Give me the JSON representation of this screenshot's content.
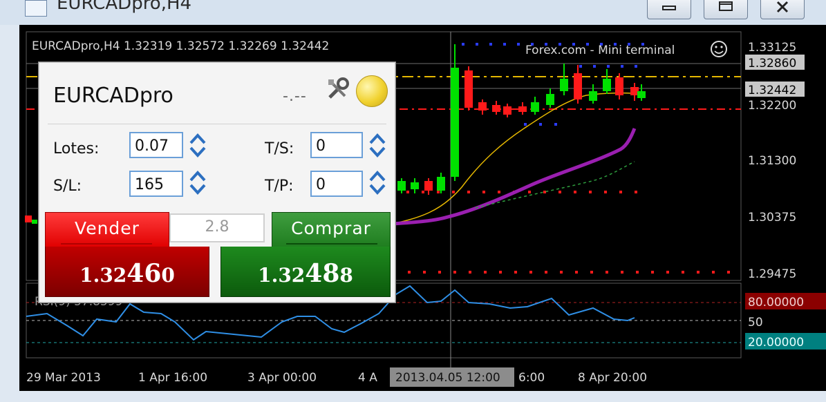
{
  "window": {
    "title": "EURCADpro,H4",
    "minimize_icon": "minimize-icon",
    "maximize_icon": "maximize-icon",
    "close_icon": "close-icon"
  },
  "chart": {
    "info_line": "EURCADpro,H4  1.32319 1.32572 1.32269 1.32442",
    "broker_label": "Forex.com - Mini terminal",
    "smiley_icon": "smiley-icon",
    "rsi_label": "RSI(9) 57.8599",
    "price_axis": [
      "1.33125",
      "1.32200",
      "1.31300",
      "1.30375",
      "1.29475"
    ],
    "price_markers": [
      {
        "text": "1.32860",
        "bg": "#c8c8c8",
        "fg": "#000000"
      },
      {
        "text": "1.32442",
        "bg": "#c8c8c8",
        "fg": "#000000"
      }
    ],
    "rsi_axis": {
      "top": "80.00000",
      "mid": "50",
      "bottom": "20.00000",
      "top_bg": "#8b0000",
      "bottom_bg": "#008080"
    },
    "time_axis": [
      "29 Mar 2013",
      "1 Apr 16:00",
      "3 Apr 00:00",
      "4 A",
      "6:00",
      "8 Apr 20:00"
    ],
    "crosshair_time": "2013.04.05 12:00",
    "colors": {
      "bull": "#00e000",
      "bear": "#ff1a1a",
      "ma_fast": "#e6b800",
      "ma_slow": "#9a1fb0",
      "rsi": "#2f8fe6"
    }
  },
  "panel": {
    "symbol": "EURCADpro",
    "spread_placeholder": "-.--",
    "tools_icon": "tools-icon",
    "coin_icon": "coin-icon",
    "lots_label": "Lotes:",
    "lots_value": "0.07",
    "sl_label": "S/L:",
    "sl_value": "165",
    "ts_label": "T/S:",
    "ts_value": "0",
    "tp_label": "T/P:",
    "tp_value": "0",
    "spread": "2.8",
    "sell_label": "Vender",
    "sell_price_small": "1.32",
    "sell_price_big": "46",
    "sell_price_end": "0",
    "buy_label": "Comprar",
    "buy_price_small": "1.32",
    "buy_price_big": "48",
    "buy_price_end": "8"
  }
}
